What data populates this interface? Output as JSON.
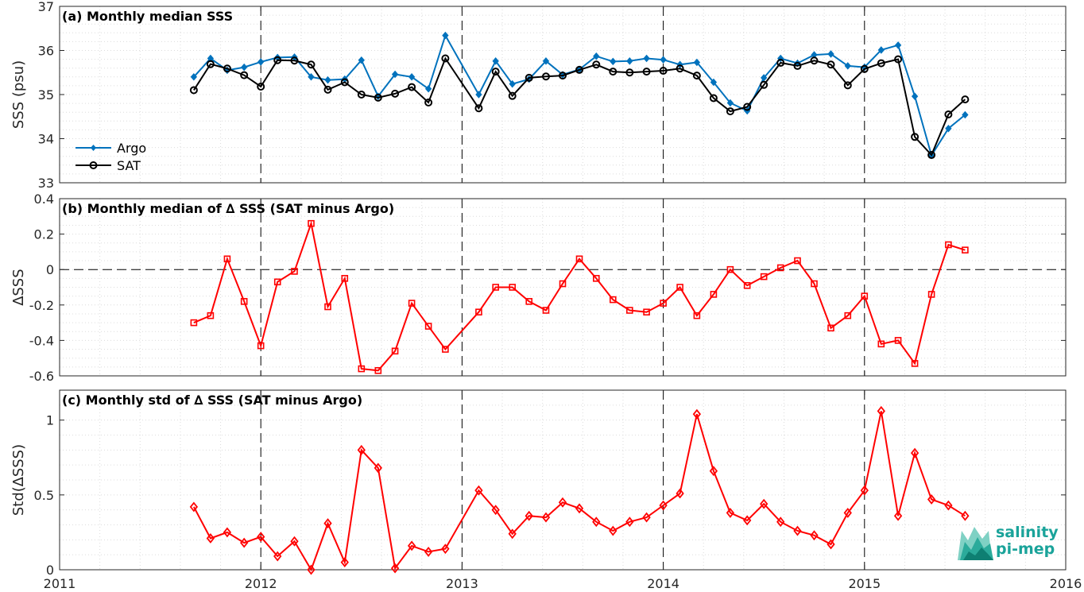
{
  "figure": {
    "panels": [
      {
        "id": "a",
        "title": "(a) Monthly median SSS",
        "ylabel": "SSS (psu)"
      },
      {
        "id": "b",
        "title": "(b) Monthly median of ∆ SSS (SAT minus Argo)",
        "ylabel": "∆SSS"
      },
      {
        "id": "c",
        "title": "(c) Monthly std of ∆ SSS (SAT minus Argo)",
        "ylabel": "Std(∆SSS)"
      }
    ],
    "logo": {
      "line1": "salinity",
      "line2": "pi-mep"
    },
    "colors": {
      "argo": "#0072BD",
      "sat": "#000000",
      "delta": "#FF0000",
      "grid": "#dcdcdc"
    }
  },
  "chart_data": [
    {
      "type": "line",
      "title": "(a) Monthly median SSS",
      "ylabel": "SSS (psu)",
      "xlim": [
        2011,
        2016
      ],
      "ylim": [
        33,
        37
      ],
      "xticks": [
        "2011",
        "2012",
        "2013",
        "2014",
        "2015",
        "2016"
      ],
      "yticks": [
        "33",
        "34",
        "35",
        "36",
        "37"
      ],
      "legend": "bottom-left",
      "x": [
        2011.667,
        2011.75,
        2011.833,
        2011.917,
        2012.0,
        2012.083,
        2012.167,
        2012.25,
        2012.333,
        2012.417,
        2012.5,
        2012.583,
        2012.667,
        2012.75,
        2012.833,
        2012.917,
        2013.083,
        2013.167,
        2013.25,
        2013.333,
        2013.417,
        2013.5,
        2013.583,
        2013.667,
        2013.75,
        2013.833,
        2013.917,
        2014.0,
        2014.083,
        2014.167,
        2014.25,
        2014.333,
        2014.417,
        2014.5,
        2014.583,
        2014.667,
        2014.75,
        2014.833,
        2014.917,
        2015.0,
        2015.083,
        2015.167,
        2015.25,
        2015.333,
        2015.417,
        2015.5
      ],
      "series": [
        {
          "name": "Argo",
          "marker": "diamond-filled",
          "values": [
            35.4,
            35.82,
            35.55,
            35.62,
            35.74,
            35.84,
            35.85,
            35.4,
            35.33,
            35.35,
            35.78,
            34.96,
            35.46,
            35.4,
            35.13,
            36.34,
            35.0,
            35.76,
            35.24,
            35.35,
            35.76,
            35.45,
            35.57,
            35.87,
            35.75,
            35.76,
            35.82,
            35.79,
            35.68,
            35.73,
            35.28,
            34.81,
            34.63,
            35.38,
            35.82,
            35.71,
            35.9,
            35.92,
            35.65,
            35.62,
            36.01,
            36.12,
            34.96,
            33.62,
            34.23,
            34.54
          ]
        },
        {
          "name": "SAT",
          "marker": "circle-open",
          "values": [
            35.1,
            35.69,
            35.59,
            35.44,
            35.18,
            35.78,
            35.77,
            35.68,
            35.11,
            35.28,
            35.0,
            34.93,
            35.02,
            35.17,
            34.82,
            35.82,
            34.69,
            35.52,
            34.97,
            35.38,
            35.41,
            35.43,
            35.56,
            35.68,
            35.52,
            35.5,
            35.52,
            35.54,
            35.59,
            35.43,
            34.92,
            34.62,
            34.72,
            35.22,
            35.72,
            35.65,
            35.77,
            35.68,
            35.21,
            35.58,
            35.71,
            35.8,
            34.04,
            33.63,
            34.55,
            34.89
          ]
        }
      ]
    },
    {
      "type": "line",
      "title": "(b) Monthly median of ∆ SSS (SAT minus Argo)",
      "ylabel": "∆SSS",
      "xlim": [
        2011,
        2016
      ],
      "ylim": [
        -0.6,
        0.4
      ],
      "xticks": [
        "2011",
        "2012",
        "2013",
        "2014",
        "2015",
        "2016"
      ],
      "yticks": [
        "-0.6",
        "-0.4",
        "-0.2",
        "0",
        "0.2",
        "0.4"
      ],
      "x": [
        2011.667,
        2011.75,
        2011.833,
        2011.917,
        2012.0,
        2012.083,
        2012.167,
        2012.25,
        2012.333,
        2012.417,
        2012.5,
        2012.583,
        2012.667,
        2012.75,
        2012.833,
        2012.917,
        2013.083,
        2013.167,
        2013.25,
        2013.333,
        2013.417,
        2013.5,
        2013.583,
        2013.667,
        2013.75,
        2013.833,
        2013.917,
        2014.0,
        2014.083,
        2014.167,
        2014.25,
        2014.333,
        2014.417,
        2014.5,
        2014.583,
        2014.667,
        2014.75,
        2014.833,
        2014.917,
        2015.0,
        2015.083,
        2015.167,
        2015.25,
        2015.333,
        2015.417,
        2015.5
      ],
      "series": [
        {
          "marker": "square-open",
          "values": [
            -0.3,
            -0.26,
            0.06,
            -0.18,
            -0.43,
            -0.07,
            -0.01,
            0.26,
            -0.21,
            -0.05,
            -0.56,
            -0.57,
            -0.46,
            -0.19,
            -0.32,
            -0.45,
            -0.24,
            -0.1,
            -0.1,
            -0.18,
            -0.23,
            -0.08,
            0.06,
            -0.05,
            -0.17,
            -0.23,
            -0.24,
            -0.19,
            -0.1,
            -0.26,
            -0.14,
            0.0,
            -0.09,
            -0.04,
            0.01,
            0.05,
            -0.08,
            -0.33,
            -0.26,
            -0.15,
            -0.42,
            -0.4,
            -0.53,
            -0.14,
            0.14,
            0.11
          ]
        }
      ]
    },
    {
      "type": "line",
      "title": "(c) Monthly std of ∆ SSS (SAT minus Argo)",
      "ylabel": "Std(∆SSS)",
      "xlim": [
        2011,
        2016
      ],
      "ylim": [
        0,
        1.2
      ],
      "xticks": [
        "2011",
        "2012",
        "2013",
        "2014",
        "2015",
        "2016"
      ],
      "yticks": [
        "0",
        "0.5",
        "1"
      ],
      "x": [
        2011.667,
        2011.75,
        2011.833,
        2011.917,
        2012.0,
        2012.083,
        2012.167,
        2012.25,
        2012.333,
        2012.417,
        2012.5,
        2012.583,
        2012.667,
        2012.75,
        2012.833,
        2012.917,
        2013.083,
        2013.167,
        2013.25,
        2013.333,
        2013.417,
        2013.5,
        2013.583,
        2013.667,
        2013.75,
        2013.833,
        2013.917,
        2014.0,
        2014.083,
        2014.167,
        2014.25,
        2014.333,
        2014.417,
        2014.5,
        2014.583,
        2014.667,
        2014.75,
        2014.833,
        2014.917,
        2015.0,
        2015.083,
        2015.167,
        2015.25,
        2015.333,
        2015.417,
        2015.5
      ],
      "series": [
        {
          "marker": "diamond-open",
          "values": [
            0.42,
            0.21,
            0.25,
            0.18,
            0.22,
            0.09,
            0.19,
            0.0,
            0.31,
            0.05,
            0.8,
            0.68,
            0.01,
            0.16,
            0.12,
            0.14,
            0.53,
            0.4,
            0.24,
            0.36,
            0.35,
            0.45,
            0.41,
            0.32,
            0.26,
            0.32,
            0.35,
            0.43,
            0.51,
            1.04,
            0.66,
            0.38,
            0.33,
            0.44,
            0.32,
            0.26,
            0.23,
            0.17,
            0.38,
            0.53,
            1.06,
            0.36,
            0.78,
            0.47,
            0.43,
            0.36
          ]
        }
      ]
    }
  ]
}
